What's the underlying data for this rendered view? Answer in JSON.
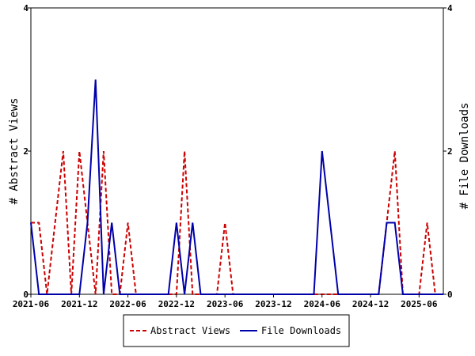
{
  "chart_data": {
    "type": "line",
    "title": "",
    "xlabel": "",
    "y_left_label": "# Abstract Views",
    "y_right_label": "# File Downloads",
    "y_left_lim": [
      0,
      4
    ],
    "y_right_lim": [
      0,
      4
    ],
    "y_left_ticks": [
      0,
      2,
      4
    ],
    "y_right_ticks": [
      0,
      2,
      4
    ],
    "x_tick_labels": [
      "2021-06",
      "2021-12",
      "2022-06",
      "2022-12",
      "2023-06",
      "2023-12",
      "2024-06",
      "2024-12",
      "2025-06"
    ],
    "x_months": [
      "2021-06",
      "2021-07",
      "2021-08",
      "2021-09",
      "2021-10",
      "2021-11",
      "2021-12",
      "2022-01",
      "2022-02",
      "2022-03",
      "2022-04",
      "2022-05",
      "2022-06",
      "2022-07",
      "2022-08",
      "2022-09",
      "2022-10",
      "2022-11",
      "2022-12",
      "2023-01",
      "2023-02",
      "2023-03",
      "2023-04",
      "2023-05",
      "2023-06",
      "2023-07",
      "2023-08",
      "2023-09",
      "2023-10",
      "2023-11",
      "2023-12",
      "2024-01",
      "2024-02",
      "2024-03",
      "2024-04",
      "2024-05",
      "2024-06",
      "2024-07",
      "2024-08",
      "2024-09",
      "2024-10",
      "2024-11",
      "2024-12",
      "2025-01",
      "2025-02",
      "2025-03",
      "2025-04",
      "2025-05",
      "2025-06",
      "2025-07",
      "2025-08",
      "2025-09"
    ],
    "series": [
      {
        "name": "Abstract Views",
        "color": "#cc0000",
        "style": "dashed",
        "values": [
          1,
          1,
          0,
          1,
          2,
          0,
          2,
          1,
          0,
          2,
          0,
          0,
          1,
          0,
          0,
          0,
          0,
          0,
          0,
          2,
          0,
          0,
          0,
          0,
          1,
          0,
          0,
          0,
          0,
          0,
          0,
          0,
          0,
          0,
          0,
          0,
          0,
          0,
          0,
          0,
          0,
          0,
          0,
          0,
          1,
          2,
          0,
          0,
          0,
          1,
          0,
          0
        ]
      },
      {
        "name": "File Downloads",
        "color": "#0000aa",
        "style": "solid",
        "values": [
          1,
          0,
          0,
          0,
          0,
          0,
          0,
          1,
          3,
          0,
          1,
          0,
          0,
          0,
          0,
          0,
          0,
          0,
          1,
          0,
          1,
          0,
          0,
          0,
          0,
          0,
          0,
          0,
          0,
          0,
          0,
          0,
          0,
          0,
          0,
          0,
          2,
          1,
          0,
          0,
          0,
          0,
          0,
          0,
          1,
          1,
          0,
          0,
          0,
          0,
          0,
          0
        ]
      }
    ],
    "grid": false,
    "legend_position": "bottom"
  }
}
